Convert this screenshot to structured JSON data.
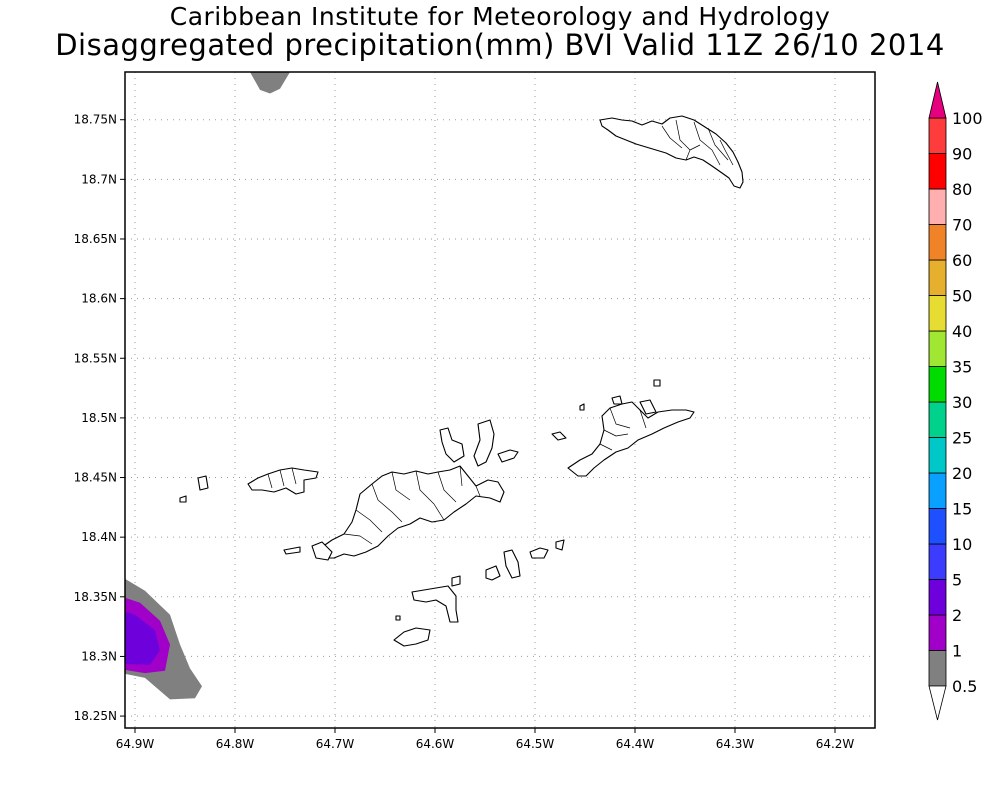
{
  "title_line1": "Caribbean Institute for Meteorology and Hydrology",
  "title_line2": "Disaggregated precipitation(mm) BVI Valid 11Z 26/10 2014",
  "chart_data": {
    "type": "heatmap",
    "map": {
      "lon_range": [
        -64.91,
        -64.16
      ],
      "lat_range": [
        18.24,
        18.79
      ],
      "lon_ticks": [
        -64.9,
        -64.8,
        -64.7,
        -64.6,
        -64.5,
        -64.4,
        -64.3,
        -64.2
      ],
      "lon_tick_labels": [
        "64.9W",
        "64.8W",
        "64.7W",
        "64.6W",
        "64.5W",
        "64.4W",
        "64.3W",
        "64.2W"
      ],
      "lat_ticks": [
        18.25,
        18.3,
        18.35,
        18.4,
        18.45,
        18.5,
        18.55,
        18.6,
        18.65,
        18.7,
        18.75
      ],
      "lat_tick_labels": [
        "18.25N",
        "18.3N",
        "18.35N",
        "18.4N",
        "18.45N",
        "18.5N",
        "18.55N",
        "18.6N",
        "18.65N",
        "18.7N",
        "18.75N"
      ],
      "grid": true,
      "grid_style": "dotted"
    },
    "colorbar": {
      "levels": [
        "0.5",
        "1",
        "2",
        "5",
        "10",
        "15",
        "20",
        "25",
        "30",
        "35",
        "40",
        "50",
        "60",
        "70",
        "80",
        "90",
        "100"
      ],
      "colors": [
        "#ffffff",
        "#808080",
        "#a000c8",
        "#6e00dc",
        "#3c3cff",
        "#1e50ff",
        "#0aa0ff",
        "#00c8c8",
        "#00d28c",
        "#00dc00",
        "#a0e632",
        "#e6dc32",
        "#e6af2d",
        "#f08228",
        "#ffafaf",
        "#ff0000",
        "#ff3c3c",
        "#e6007d"
      ],
      "extend": "both"
    },
    "precip_areas": [
      {
        "level": "0.5",
        "color": "#808080",
        "description_level_mm": 0.5,
        "outline": [
          [
            -64.92,
            18.37
          ],
          [
            -64.89,
            18.355
          ],
          [
            -64.865,
            18.335
          ],
          [
            -64.855,
            18.31
          ],
          [
            -64.845,
            18.29
          ],
          [
            -64.833,
            18.275
          ],
          [
            -64.84,
            18.265
          ],
          [
            -64.865,
            18.264
          ],
          [
            -64.89,
            18.282
          ],
          [
            -64.92,
            18.287
          ]
        ]
      },
      {
        "level": "1",
        "color": "#a000c8",
        "description_level_mm": 1,
        "outline": [
          [
            -64.92,
            18.352
          ],
          [
            -64.895,
            18.345
          ],
          [
            -64.875,
            18.33
          ],
          [
            -64.865,
            18.31
          ],
          [
            -64.87,
            18.288
          ],
          [
            -64.89,
            18.286
          ],
          [
            -64.92,
            18.29
          ]
        ]
      },
      {
        "level": "2",
        "color": "#6e00dc",
        "description_level_mm": 2,
        "outline": [
          [
            -64.92,
            18.34
          ],
          [
            -64.9,
            18.335
          ],
          [
            -64.88,
            18.322
          ],
          [
            -64.875,
            18.305
          ],
          [
            -64.885,
            18.293
          ],
          [
            -64.92,
            18.294
          ]
        ]
      },
      {
        "level": "0.5",
        "color": "#808080",
        "description_level_mm": 0.5,
        "outline": [
          [
            -64.785,
            18.79
          ],
          [
            -64.775,
            18.775
          ],
          [
            -64.765,
            18.772
          ],
          [
            -64.755,
            18.776
          ],
          [
            -64.745,
            18.79
          ]
        ]
      }
    ]
  }
}
